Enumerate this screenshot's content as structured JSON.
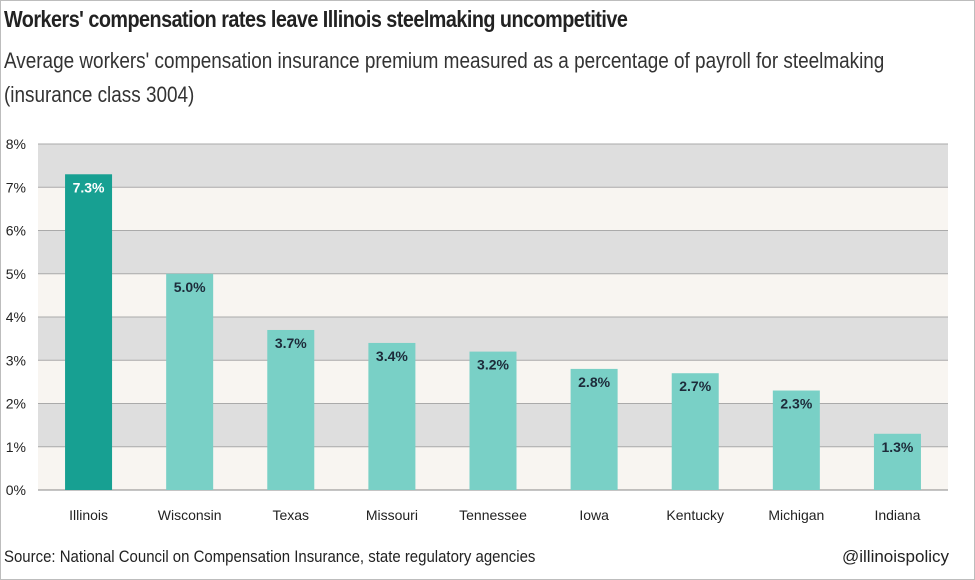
{
  "header": {
    "title": "Workers' compensation rates leave Illinois steelmaking uncompetitive",
    "subtitle": "Average workers' compensation insurance premium measured as a percentage of payroll for steelmaking (insurance class 3004)"
  },
  "footer": {
    "source": "Source: National Council on Compensation Insurance, state regulatory agencies",
    "handle": "@illinoispolicy"
  },
  "colors": {
    "highlight": "#17a092",
    "bar": "#79d0c6",
    "band_dark": "#dedede",
    "band_light": "#f8f5f1",
    "gridline": "#aaaaaa"
  },
  "chart_data": {
    "type": "bar",
    "categories": [
      "Illinois",
      "Wisconsin",
      "Texas",
      "Missouri",
      "Tennessee",
      "Iowa",
      "Kentucky",
      "Michigan",
      "Indiana"
    ],
    "values": [
      7.3,
      5.0,
      3.7,
      3.4,
      3.2,
      2.8,
      2.7,
      2.3,
      1.3
    ],
    "value_labels": [
      "7.3%",
      "5.0%",
      "3.7%",
      "3.4%",
      "3.2%",
      "2.8%",
      "2.7%",
      "2.3%",
      "1.3%"
    ],
    "highlight_category": "Illinois",
    "ylim": [
      0,
      8
    ],
    "yticks": [
      0,
      1,
      2,
      3,
      4,
      5,
      6,
      7,
      8
    ],
    "ytick_labels": [
      "0%",
      "1%",
      "2%",
      "3%",
      "4%",
      "5%",
      "6%",
      "7%",
      "8%"
    ],
    "grid": true,
    "legend": "none"
  }
}
